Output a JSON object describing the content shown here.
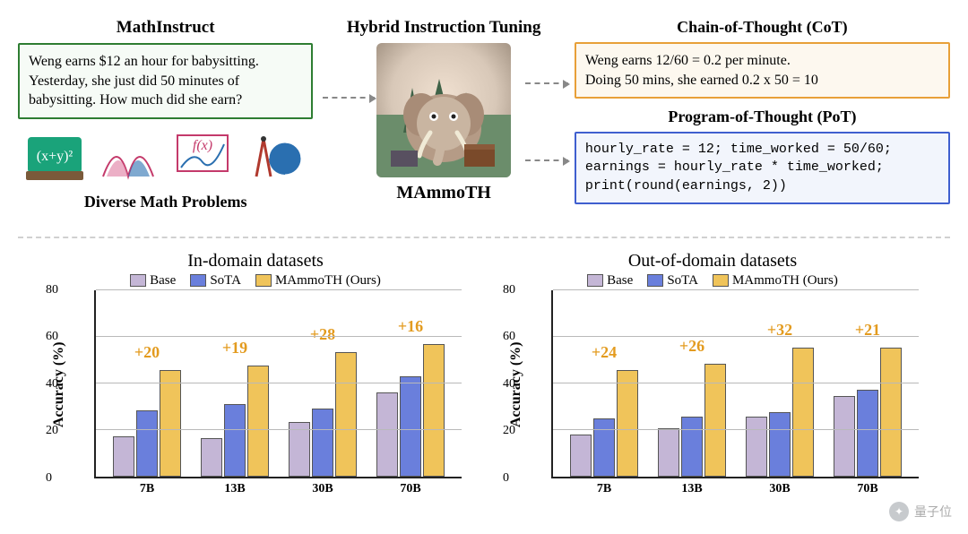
{
  "top": {
    "mathinstruct_title": "MathInstruct",
    "hybrid_title": "Hybrid Instruction Tuning",
    "problem_text": "Weng earns $12 an hour for babysitting. Yesterday, she just did 50 minutes of babysitting. How much did she earn?",
    "diverse_title": "Diverse Math Problems",
    "mammoth_title": "MAmmoTH",
    "cot_title": "Chain-of-Thought (CoT)",
    "cot_text": "Weng earns 12/60 = 0.2 per minute.\nDoing 50 mins, she earned 0.2 x 50 = 10",
    "pot_title": "Program-of-Thought (PoT)",
    "pot_text": "hourly_rate = 12; time_worked = 50/60;\nearnings = hourly_rate * time_worked;\nprint(round(earnings, 2))"
  },
  "charts": {
    "left": {
      "title": "In-domain datasets",
      "type": "bar",
      "categories": [
        "7B",
        "13B",
        "30B",
        "70B"
      ],
      "series": [
        {
          "name": "Base",
          "color": "#c4b6d6",
          "values": [
            19,
            18,
            26,
            41
          ]
        },
        {
          "name": "SoTA",
          "color": "#6a7fdc",
          "values": [
            32,
            35,
            33,
            49
          ]
        },
        {
          "name": "MAmmoTH (Ours)",
          "color": "#f0c45a",
          "values": [
            52,
            54,
            61,
            65
          ]
        }
      ],
      "deltas": [
        "+20",
        "+19",
        "+28",
        "+16"
      ],
      "delta_color": "#e39b1f",
      "ylim": [
        0,
        80
      ],
      "yticks": [
        0,
        20,
        40,
        60,
        80
      ],
      "ylabel": "Accuracy (%)",
      "grid_color": "#b9b9b9",
      "bar_border": "#555555"
    },
    "right": {
      "title": "Out-of-domain datasets",
      "type": "bar",
      "categories": [
        "7B",
        "13B",
        "30B",
        "70B"
      ],
      "series": [
        {
          "name": "Base",
          "color": "#c4b6d6",
          "values": [
            20,
            23,
            29,
            39
          ]
        },
        {
          "name": "SoTA",
          "color": "#6a7fdc",
          "values": [
            28,
            29,
            31,
            42
          ]
        },
        {
          "name": "MAmmoTH (Ours)",
          "color": "#f0c45a",
          "values": [
            52,
            55,
            63,
            63
          ]
        }
      ],
      "deltas": [
        "+24",
        "+26",
        "+32",
        "+21"
      ],
      "delta_color": "#e39b1f",
      "ylim": [
        0,
        80
      ],
      "yticks": [
        0,
        20,
        40,
        60,
        80
      ],
      "ylabel": "Accuracy (%)",
      "grid_color": "#b9b9b9",
      "bar_border": "#555555"
    }
  },
  "legend_labels": {
    "base": "Base",
    "sota": "SoTA",
    "ours": "MAmmoTH (Ours)"
  },
  "watermark": "量子位"
}
